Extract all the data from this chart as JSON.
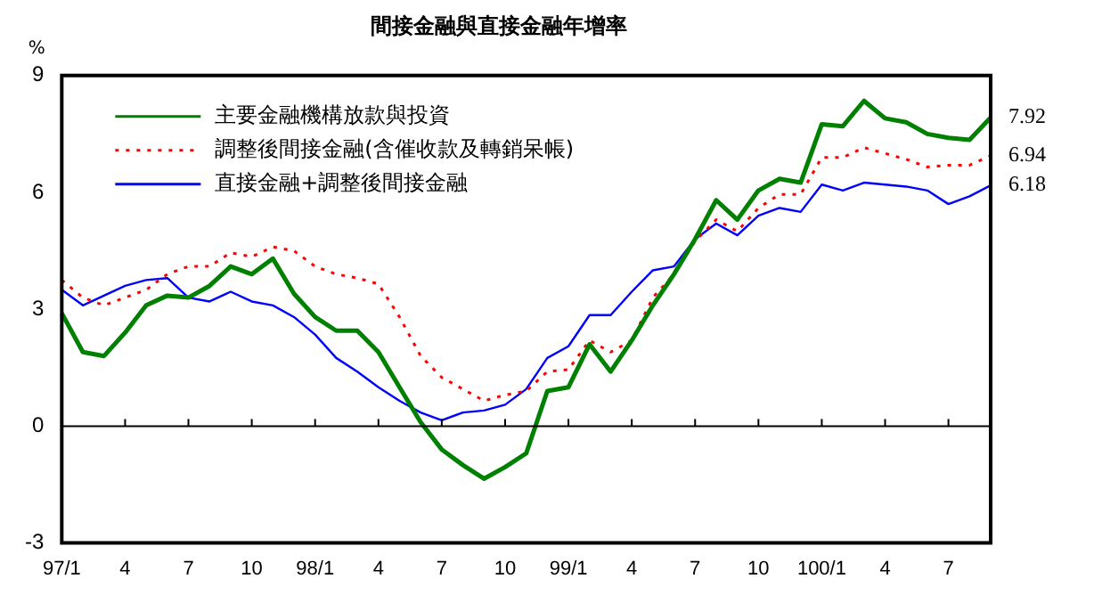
{
  "chart_data": {
    "type": "line",
    "title": "間接金融與直接金融年增率",
    "ylabel": "%",
    "categories": [
      "97/1",
      null,
      null,
      "4",
      null,
      null,
      "7",
      null,
      null,
      "10",
      null,
      null,
      "98/1",
      null,
      null,
      "4",
      null,
      null,
      "7",
      null,
      null,
      "10",
      null,
      null,
      "99/1",
      null,
      null,
      "4",
      null,
      null,
      "7",
      null,
      null,
      "10",
      null,
      null,
      "100/1",
      null,
      null,
      "4",
      null,
      null,
      "7",
      null,
      null
    ],
    "series": [
      {
        "name": "主要金融機構放款與投資",
        "color": "#008000",
        "line_style": "solid",
        "values": [
          2.9,
          1.9,
          1.8,
          2.4,
          3.1,
          3.35,
          3.3,
          3.6,
          4.1,
          3.9,
          4.3,
          3.4,
          2.8,
          2.45,
          2.45,
          1.9,
          1.0,
          0.1,
          -0.6,
          -1.0,
          -1.35,
          -1.05,
          -0.7,
          0.9,
          1.0,
          2.1,
          1.4,
          2.2,
          3.1,
          3.9,
          4.8,
          5.8,
          5.3,
          6.05,
          6.35,
          6.25,
          7.75,
          7.7,
          8.35,
          7.9,
          7.8,
          7.5,
          7.4,
          7.35,
          7.92
        ],
        "value_labels": [
          null,
          null,
          null,
          null,
          null,
          null,
          null,
          null,
          null,
          null,
          null,
          null,
          null,
          null,
          null,
          null,
          null,
          null,
          null,
          null,
          null,
          null,
          null,
          null,
          null,
          null,
          null,
          null,
          null,
          null,
          null,
          null,
          null,
          null,
          null,
          null,
          null,
          null,
          null,
          null,
          null,
          null,
          null,
          null,
          "7.92"
        ]
      },
      {
        "name": "調整後間接金融(含催收款及轉銷呆帳)",
        "color": "#ff0000",
        "line_style": "dotted",
        "values": [
          3.75,
          3.3,
          3.1,
          3.3,
          3.5,
          3.9,
          4.1,
          4.1,
          4.45,
          4.35,
          4.6,
          4.5,
          4.1,
          3.9,
          3.8,
          3.65,
          2.8,
          1.8,
          1.25,
          0.95,
          0.65,
          0.8,
          0.9,
          1.4,
          1.45,
          2.2,
          1.9,
          2.2,
          3.3,
          3.9,
          4.75,
          5.3,
          5.0,
          5.6,
          5.95,
          5.95,
          6.9,
          6.9,
          7.15,
          7.0,
          6.85,
          6.65,
          6.7,
          6.7,
          6.94
        ],
        "value_labels": [
          null,
          null,
          null,
          null,
          null,
          null,
          null,
          null,
          null,
          null,
          null,
          null,
          null,
          null,
          null,
          null,
          null,
          null,
          null,
          null,
          null,
          null,
          null,
          null,
          null,
          null,
          null,
          null,
          null,
          null,
          null,
          null,
          null,
          null,
          null,
          null,
          null,
          null,
          null,
          null,
          null,
          null,
          null,
          null,
          "6.94"
        ]
      },
      {
        "name": "直接金融+調整後間接金融",
        "color": "#0000ff",
        "line_style": "solid",
        "values": [
          3.5,
          3.1,
          3.35,
          3.6,
          3.75,
          3.8,
          3.3,
          3.2,
          3.45,
          3.2,
          3.1,
          2.8,
          2.35,
          1.75,
          1.4,
          1.0,
          0.65,
          0.35,
          0.15,
          0.35,
          0.4,
          0.55,
          0.95,
          1.75,
          2.05,
          2.85,
          2.85,
          3.45,
          4.0,
          4.1,
          4.8,
          5.2,
          4.9,
          5.4,
          5.6,
          5.5,
          6.2,
          6.05,
          6.25,
          6.2,
          6.15,
          6.05,
          5.7,
          5.9,
          6.18
        ],
        "value_labels": [
          null,
          null,
          null,
          null,
          null,
          null,
          null,
          null,
          null,
          null,
          null,
          null,
          null,
          null,
          null,
          null,
          null,
          null,
          null,
          null,
          null,
          null,
          null,
          null,
          null,
          null,
          null,
          null,
          null,
          null,
          null,
          null,
          null,
          null,
          null,
          null,
          null,
          null,
          null,
          null,
          null,
          null,
          null,
          null,
          "6.18"
        ]
      }
    ],
    "ylim": [
      -3,
      9
    ],
    "yticks": [
      -3,
      0,
      3,
      6,
      9
    ],
    "grid": false,
    "legend": "top left",
    "marker": "none",
    "ref_lines": [
      {
        "axis": "y",
        "value": 0,
        "color": "#000000"
      }
    ]
  }
}
